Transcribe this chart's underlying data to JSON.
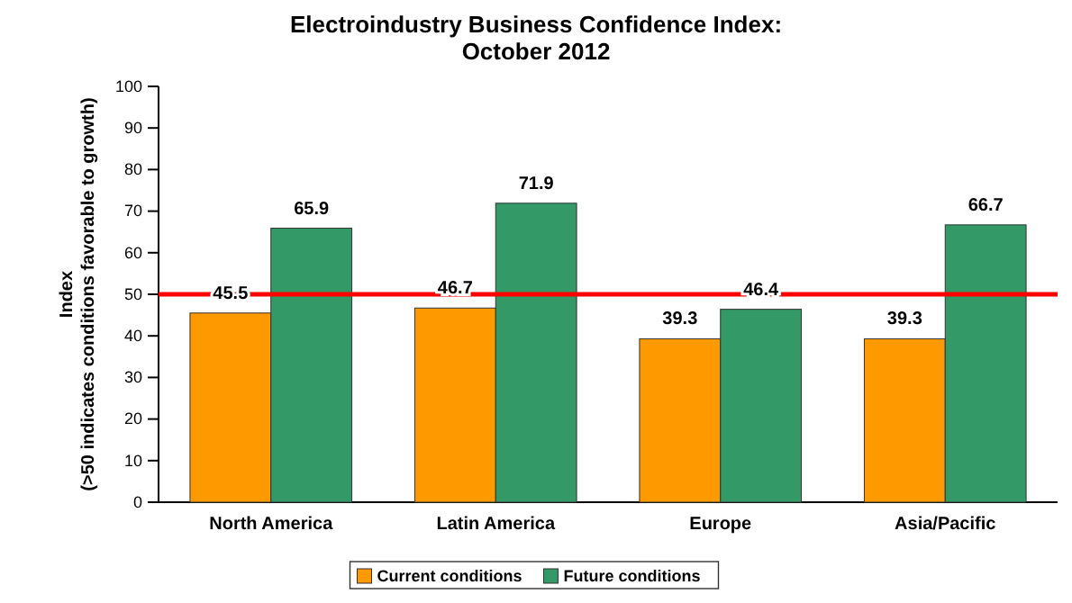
{
  "chart_data": {
    "type": "bar",
    "title": "Electroindustry Business Confidence Index:\nOctober 2012",
    "ylabel": "Index\n(>50 indicates conditions favorable to growth)",
    "categories": [
      "North America",
      "Latin America",
      "Europe",
      "Asia/Pacific"
    ],
    "series": [
      {
        "name": "Current conditions",
        "color": "#ff9900",
        "values": [
          45.5,
          46.7,
          39.3,
          39.3
        ]
      },
      {
        "name": "Future conditions",
        "color": "#339966",
        "values": [
          65.9,
          71.9,
          46.4,
          66.7
        ]
      }
    ],
    "ylim": [
      0,
      100
    ],
    "yticks": [
      0,
      10,
      20,
      30,
      40,
      50,
      60,
      70,
      80,
      90,
      100
    ],
    "ref_lines": [
      {
        "axis": "y",
        "value": 50,
        "color": "#ff0000"
      }
    ],
    "data_labels": true,
    "legend": "bottom",
    "grid": false
  }
}
